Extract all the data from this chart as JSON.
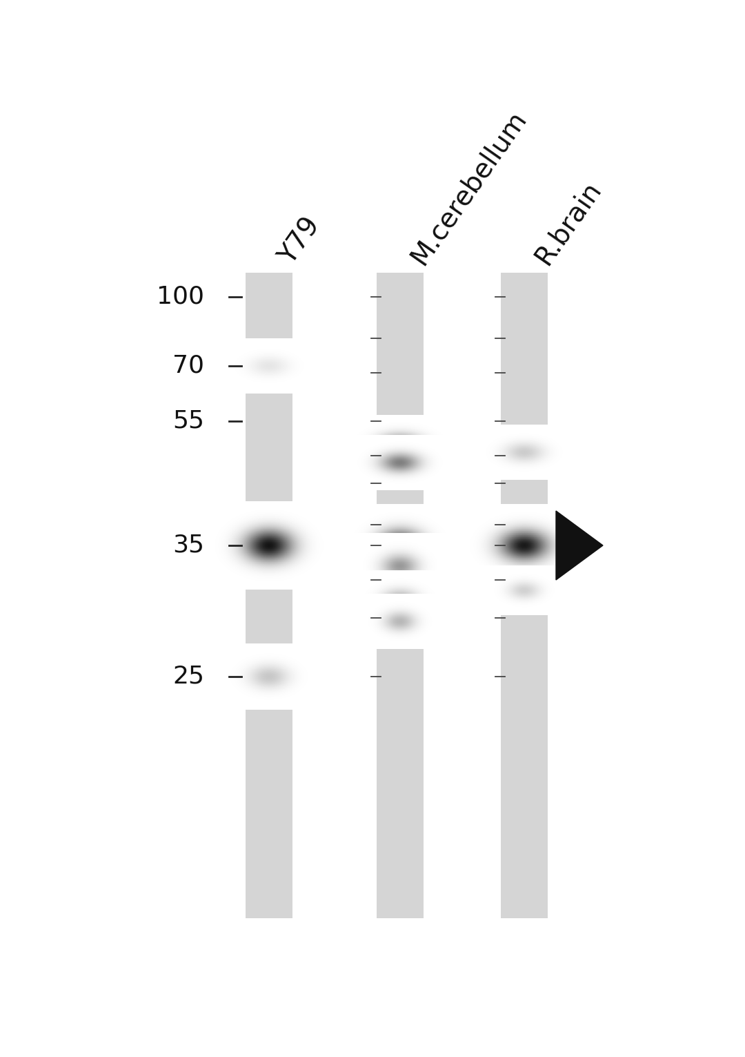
{
  "background_color": "#ffffff",
  "figure_width": 10.8,
  "figure_height": 15.31,
  "lane_labels": [
    "Y79",
    "M.cerebellum",
    "R.brain"
  ],
  "mw_markers": [
    100,
    70,
    55,
    35,
    25
  ],
  "lane_bg_color": "#d5d5d5",
  "tick_color": "#222222",
  "band_dark": "#0a0a0a",
  "band_medium": "#555555",
  "band_faint": "#999999",
  "arrow_color": "#111111",
  "label_color": "#111111",
  "label_fontsize": 28,
  "mw_fontsize": 26
}
